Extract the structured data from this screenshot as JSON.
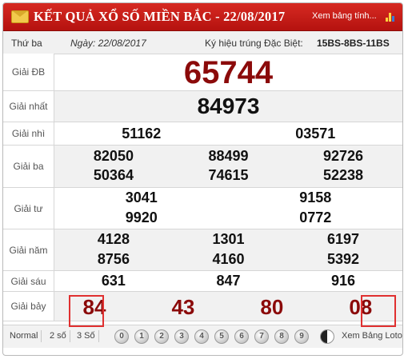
{
  "header": {
    "title": "KẾT QUẢ XỔ SỐ MIỀN BẮC - 22/08/2017",
    "more_link": "Xem bảng tính..."
  },
  "info": {
    "day": "Thứ ba",
    "date": "Ngày: 22/08/2017",
    "special_label": "Ký hiệu trúng Đặc Biệt:",
    "special_code": "15BS-8BS-11BS"
  },
  "prizes": {
    "db": {
      "label": "Giải ĐB",
      "numbers": [
        "65744"
      ]
    },
    "nhat": {
      "label": "Giải nhất",
      "numbers": [
        "84973"
      ]
    },
    "nhi": {
      "label": "Giải nhì",
      "numbers": [
        "51162",
        "03571"
      ]
    },
    "ba": {
      "label": "Giải ba",
      "numbers": [
        "82050",
        "88499",
        "92726",
        "50364",
        "74615",
        "52238"
      ]
    },
    "tu": {
      "label": "Giải tư",
      "numbers": [
        "3041",
        "9158",
        "9920",
        "0772"
      ]
    },
    "nam": {
      "label": "Giải năm",
      "numbers": [
        "4128",
        "1301",
        "6197",
        "8756",
        "4160",
        "5392"
      ]
    },
    "sau": {
      "label": "Giải sáu",
      "numbers": [
        "631",
        "847",
        "916"
      ]
    },
    "bay": {
      "label": "Giải bảy",
      "numbers": [
        "84",
        "43",
        "80",
        "08"
      ]
    }
  },
  "footer": {
    "tabs": [
      "Normal",
      "2 số",
      "3 Số"
    ],
    "balls": [
      "0",
      "1",
      "2",
      "3",
      "4",
      "5",
      "6",
      "7",
      "8",
      "9"
    ],
    "loto_link": "Xem Bảng Loto"
  },
  "colors": {
    "header_red": "#c81d18",
    "prize_red": "#8b0a0a",
    "highlight_box": "#e03030"
  }
}
